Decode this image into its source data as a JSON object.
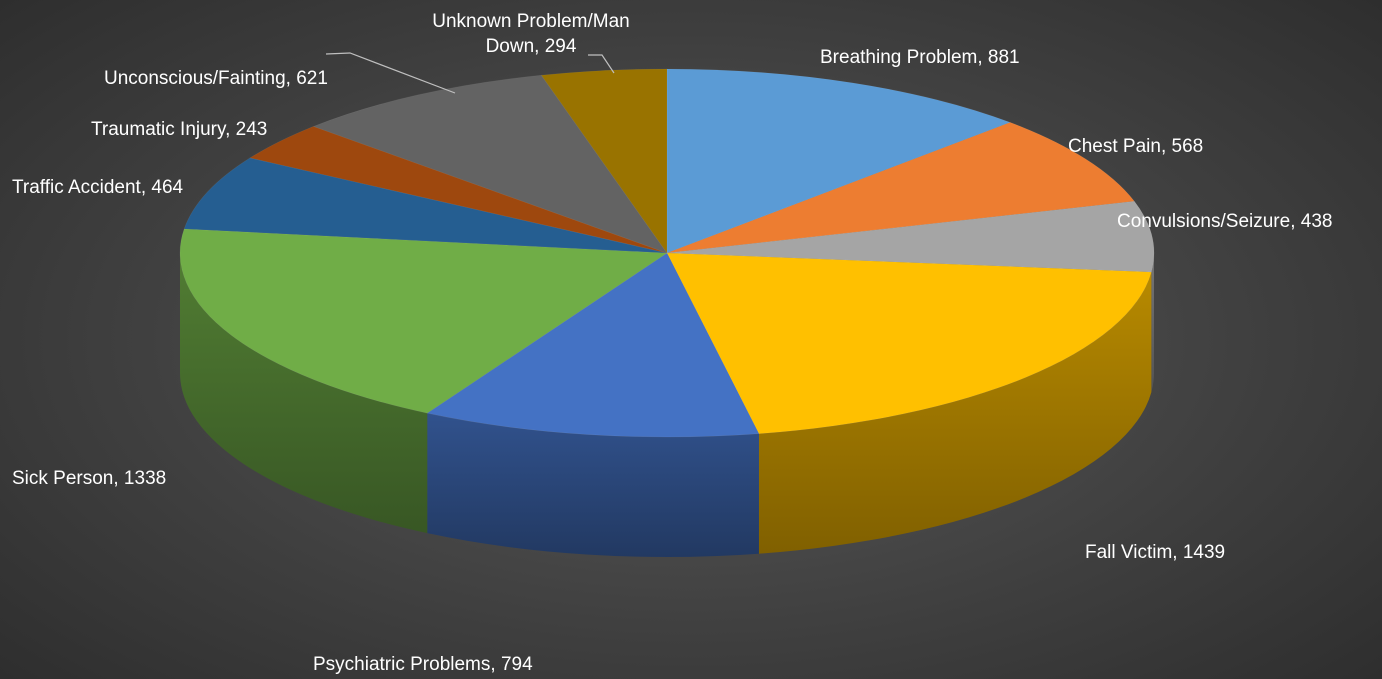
{
  "chart_data": {
    "type": "pie",
    "title": "",
    "style": "3d-pie",
    "start_angle_deg": 0,
    "direction": "clockwise",
    "slices": [
      {
        "label": "Breathing Problem",
        "value": 881,
        "color": "#5B9BD5"
      },
      {
        "label": "Chest Pain",
        "value": 568,
        "color": "#ED7D31"
      },
      {
        "label": "Convulsions/Seizure",
        "value": 438,
        "color": "#A5A5A5"
      },
      {
        "label": "Fall Victim",
        "value": 1439,
        "color": "#FFC000"
      },
      {
        "label": "Psychiatric Problems",
        "value": 794,
        "color": "#4472C4"
      },
      {
        "label": "Sick Person",
        "value": 1338,
        "color": "#70AD47"
      },
      {
        "label": "Traffic Accident",
        "value": 464,
        "color": "#255E91"
      },
      {
        "label": "Traumatic Injury",
        "value": 243,
        "color": "#9E480E"
      },
      {
        "label": "Unconscious/Fainting",
        "value": 621,
        "color": "#636363"
      },
      {
        "label": "Unknown Problem/Man Down",
        "value": 294,
        "color": "#997300"
      }
    ],
    "labels_shown": "category name and value",
    "legend": "none",
    "background": "#3f3f3f"
  }
}
